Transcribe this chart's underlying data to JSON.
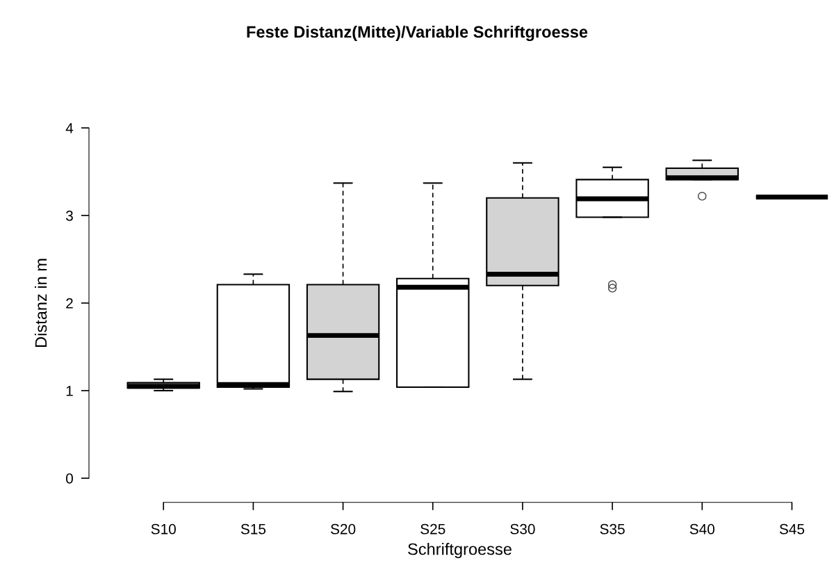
{
  "chart_data": {
    "type": "box",
    "title": "Feste Distanz(Mitte)/Variable Schriftgroesse",
    "xlabel": "Schriftgroesse",
    "ylabel": "Distanz in m",
    "categories": [
      "S10",
      "S15",
      "S20",
      "S25",
      "S30",
      "S35",
      "S40",
      "S45"
    ],
    "colors": [
      "#d3d3d3",
      "#ffffff",
      "#d3d3d3",
      "#ffffff",
      "#d3d3d3",
      "#ffffff",
      "#d3d3d3",
      null
    ],
    "boxes": [
      {
        "low": 1.0,
        "q1": 1.03,
        "median": 1.05,
        "q3": 1.09,
        "high": 1.13
      },
      {
        "low": 1.02,
        "q1": 1.04,
        "median": 1.07,
        "q3": 2.21,
        "high": 2.33
      },
      {
        "low": 0.99,
        "q1": 1.13,
        "median": 1.63,
        "q3": 2.21,
        "high": 3.37
      },
      {
        "low": 1.04,
        "q1": 1.04,
        "median": 2.18,
        "q3": 2.28,
        "high": 3.37
      },
      {
        "low": 1.13,
        "q1": 2.2,
        "median": 2.33,
        "q3": 3.2,
        "high": 3.6
      },
      {
        "low": 2.98,
        "q1": 2.98,
        "median": 3.19,
        "q3": 3.41,
        "high": 3.55,
        "outliers": [
          2.21,
          2.17
        ]
      },
      {
        "low": 3.41,
        "q1": 3.41,
        "median": 3.43,
        "q3": 3.54,
        "high": 3.63,
        "outliers": [
          3.22
        ]
      },
      {
        "low": 3.21,
        "q1": 3.21,
        "median": 3.21,
        "q3": 3.21,
        "high": 3.21
      }
    ],
    "ylim": [
      0,
      4
    ],
    "yticks": [
      0,
      1,
      2,
      3,
      4
    ],
    "grid": false
  }
}
